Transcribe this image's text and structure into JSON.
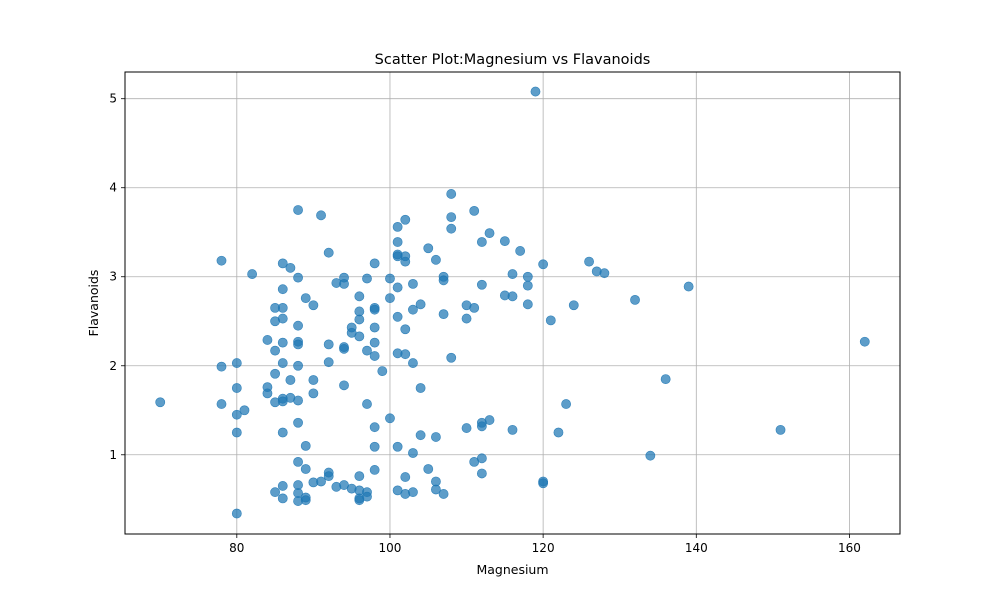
{
  "chart_data": {
    "type": "scatter",
    "title": "Scatter Plot:Magnesium vs Flavanoids",
    "xlabel": "Magnesium",
    "ylabel": "Flavanoids",
    "xlim": [
      65.4,
      166.6
    ],
    "ylim": [
      0.11,
      5.3
    ],
    "xticks": [
      80,
      100,
      120,
      140,
      160
    ],
    "yticks": [
      1,
      2,
      3,
      4,
      5
    ],
    "grid": true,
    "color": "#1f77b4",
    "points": [
      {
        "x": 70,
        "y": 1.59
      },
      {
        "x": 78,
        "y": 3.18
      },
      {
        "x": 78,
        "y": 1.99
      },
      {
        "x": 78,
        "y": 1.57
      },
      {
        "x": 80,
        "y": 2.03
      },
      {
        "x": 80,
        "y": 1.75
      },
      {
        "x": 80,
        "y": 1.45
      },
      {
        "x": 80,
        "y": 1.25
      },
      {
        "x": 80,
        "y": 0.34
      },
      {
        "x": 81,
        "y": 1.5
      },
      {
        "x": 82,
        "y": 3.03
      },
      {
        "x": 84,
        "y": 2.29
      },
      {
        "x": 84,
        "y": 1.76
      },
      {
        "x": 84,
        "y": 1.69
      },
      {
        "x": 85,
        "y": 2.65
      },
      {
        "x": 85,
        "y": 2.5
      },
      {
        "x": 85,
        "y": 2.17
      },
      {
        "x": 85,
        "y": 1.91
      },
      {
        "x": 85,
        "y": 1.59
      },
      {
        "x": 85,
        "y": 0.58
      },
      {
        "x": 86,
        "y": 3.15
      },
      {
        "x": 86,
        "y": 2.86
      },
      {
        "x": 86,
        "y": 2.65
      },
      {
        "x": 86,
        "y": 2.53
      },
      {
        "x": 86,
        "y": 2.26
      },
      {
        "x": 86,
        "y": 2.03
      },
      {
        "x": 86,
        "y": 1.63
      },
      {
        "x": 86,
        "y": 1.6
      },
      {
        "x": 86,
        "y": 1.25
      },
      {
        "x": 86,
        "y": 0.65
      },
      {
        "x": 86,
        "y": 0.51
      },
      {
        "x": 87,
        "y": 3.1
      },
      {
        "x": 87,
        "y": 1.84
      },
      {
        "x": 87,
        "y": 1.64
      },
      {
        "x": 88,
        "y": 3.75
      },
      {
        "x": 88,
        "y": 2.99
      },
      {
        "x": 88,
        "y": 2.45
      },
      {
        "x": 88,
        "y": 2.27
      },
      {
        "x": 88,
        "y": 2.24
      },
      {
        "x": 88,
        "y": 2.0
      },
      {
        "x": 88,
        "y": 1.61
      },
      {
        "x": 88,
        "y": 1.36
      },
      {
        "x": 88,
        "y": 0.92
      },
      {
        "x": 88,
        "y": 0.66
      },
      {
        "x": 88,
        "y": 0.57
      },
      {
        "x": 88,
        "y": 0.48
      },
      {
        "x": 89,
        "y": 2.76
      },
      {
        "x": 89,
        "y": 1.1
      },
      {
        "x": 89,
        "y": 0.84
      },
      {
        "x": 89,
        "y": 0.52
      },
      {
        "x": 89,
        "y": 0.49
      },
      {
        "x": 90,
        "y": 2.68
      },
      {
        "x": 90,
        "y": 1.84
      },
      {
        "x": 90,
        "y": 1.69
      },
      {
        "x": 90,
        "y": 0.69
      },
      {
        "x": 91,
        "y": 3.69
      },
      {
        "x": 91,
        "y": 0.7
      },
      {
        "x": 92,
        "y": 3.27
      },
      {
        "x": 92,
        "y": 2.24
      },
      {
        "x": 92,
        "y": 2.04
      },
      {
        "x": 92,
        "y": 0.8
      },
      {
        "x": 92,
        "y": 0.76
      },
      {
        "x": 93,
        "y": 2.93
      },
      {
        "x": 93,
        "y": 0.64
      },
      {
        "x": 94,
        "y": 2.99
      },
      {
        "x": 94,
        "y": 2.92
      },
      {
        "x": 94,
        "y": 2.21
      },
      {
        "x": 94,
        "y": 2.19
      },
      {
        "x": 94,
        "y": 1.78
      },
      {
        "x": 94,
        "y": 0.66
      },
      {
        "x": 95,
        "y": 2.43
      },
      {
        "x": 95,
        "y": 2.37
      },
      {
        "x": 95,
        "y": 0.62
      },
      {
        "x": 96,
        "y": 2.78
      },
      {
        "x": 96,
        "y": 2.61
      },
      {
        "x": 96,
        "y": 2.52
      },
      {
        "x": 96,
        "y": 2.33
      },
      {
        "x": 96,
        "y": 0.76
      },
      {
        "x": 96,
        "y": 0.6
      },
      {
        "x": 96,
        "y": 0.51
      },
      {
        "x": 96,
        "y": 0.49
      },
      {
        "x": 97,
        "y": 2.98
      },
      {
        "x": 97,
        "y": 2.17
      },
      {
        "x": 97,
        "y": 1.57
      },
      {
        "x": 97,
        "y": 0.58
      },
      {
        "x": 97,
        "y": 0.53
      },
      {
        "x": 98,
        "y": 3.15
      },
      {
        "x": 98,
        "y": 2.65
      },
      {
        "x": 98,
        "y": 2.63
      },
      {
        "x": 98,
        "y": 2.43
      },
      {
        "x": 98,
        "y": 2.26
      },
      {
        "x": 98,
        "y": 2.11
      },
      {
        "x": 98,
        "y": 1.31
      },
      {
        "x": 98,
        "y": 1.09
      },
      {
        "x": 98,
        "y": 0.83
      },
      {
        "x": 99,
        "y": 1.94
      },
      {
        "x": 100,
        "y": 2.98
      },
      {
        "x": 100,
        "y": 2.76
      },
      {
        "x": 100,
        "y": 1.41
      },
      {
        "x": 101,
        "y": 3.56
      },
      {
        "x": 101,
        "y": 3.39
      },
      {
        "x": 101,
        "y": 3.25
      },
      {
        "x": 101,
        "y": 3.23
      },
      {
        "x": 101,
        "y": 2.88
      },
      {
        "x": 101,
        "y": 2.55
      },
      {
        "x": 101,
        "y": 2.14
      },
      {
        "x": 101,
        "y": 1.09
      },
      {
        "x": 101,
        "y": 0.6
      },
      {
        "x": 102,
        "y": 3.64
      },
      {
        "x": 102,
        "y": 3.23
      },
      {
        "x": 102,
        "y": 3.17
      },
      {
        "x": 102,
        "y": 2.41
      },
      {
        "x": 102,
        "y": 2.13
      },
      {
        "x": 102,
        "y": 0.75
      },
      {
        "x": 102,
        "y": 0.56
      },
      {
        "x": 103,
        "y": 2.92
      },
      {
        "x": 103,
        "y": 2.63
      },
      {
        "x": 103,
        "y": 2.03
      },
      {
        "x": 103,
        "y": 1.02
      },
      {
        "x": 103,
        "y": 0.58
      },
      {
        "x": 104,
        "y": 2.69
      },
      {
        "x": 104,
        "y": 1.75
      },
      {
        "x": 104,
        "y": 1.22
      },
      {
        "x": 105,
        "y": 3.32
      },
      {
        "x": 105,
        "y": 0.84
      },
      {
        "x": 106,
        "y": 3.19
      },
      {
        "x": 106,
        "y": 1.2
      },
      {
        "x": 106,
        "y": 0.7
      },
      {
        "x": 106,
        "y": 0.61
      },
      {
        "x": 107,
        "y": 3.0
      },
      {
        "x": 107,
        "y": 2.96
      },
      {
        "x": 107,
        "y": 2.58
      },
      {
        "x": 107,
        "y": 0.56
      },
      {
        "x": 108,
        "y": 3.93
      },
      {
        "x": 108,
        "y": 3.67
      },
      {
        "x": 108,
        "y": 3.54
      },
      {
        "x": 108,
        "y": 2.09
      },
      {
        "x": 110,
        "y": 2.68
      },
      {
        "x": 110,
        "y": 2.53
      },
      {
        "x": 110,
        "y": 1.3
      },
      {
        "x": 111,
        "y": 3.74
      },
      {
        "x": 111,
        "y": 2.65
      },
      {
        "x": 111,
        "y": 0.92
      },
      {
        "x": 112,
        "y": 3.39
      },
      {
        "x": 112,
        "y": 2.91
      },
      {
        "x": 112,
        "y": 1.36
      },
      {
        "x": 112,
        "y": 1.32
      },
      {
        "x": 112,
        "y": 0.96
      },
      {
        "x": 112,
        "y": 0.79
      },
      {
        "x": 113,
        "y": 3.49
      },
      {
        "x": 113,
        "y": 1.39
      },
      {
        "x": 115,
        "y": 3.4
      },
      {
        "x": 115,
        "y": 2.79
      },
      {
        "x": 116,
        "y": 3.03
      },
      {
        "x": 116,
        "y": 2.78
      },
      {
        "x": 116,
        "y": 1.28
      },
      {
        "x": 117,
        "y": 3.29
      },
      {
        "x": 118,
        "y": 3.0
      },
      {
        "x": 118,
        "y": 2.9
      },
      {
        "x": 118,
        "y": 2.69
      },
      {
        "x": 119,
        "y": 5.08
      },
      {
        "x": 120,
        "y": 3.14
      },
      {
        "x": 120,
        "y": 0.7
      },
      {
        "x": 120,
        "y": 0.68
      },
      {
        "x": 121,
        "y": 2.51
      },
      {
        "x": 122,
        "y": 1.25
      },
      {
        "x": 123,
        "y": 1.57
      },
      {
        "x": 124,
        "y": 2.68
      },
      {
        "x": 126,
        "y": 3.17
      },
      {
        "x": 127,
        "y": 3.06
      },
      {
        "x": 128,
        "y": 3.04
      },
      {
        "x": 132,
        "y": 2.74
      },
      {
        "x": 134,
        "y": 0.99
      },
      {
        "x": 136,
        "y": 1.85
      },
      {
        "x": 139,
        "y": 2.89
      },
      {
        "x": 151,
        "y": 1.28
      },
      {
        "x": 162,
        "y": 2.27
      }
    ]
  }
}
